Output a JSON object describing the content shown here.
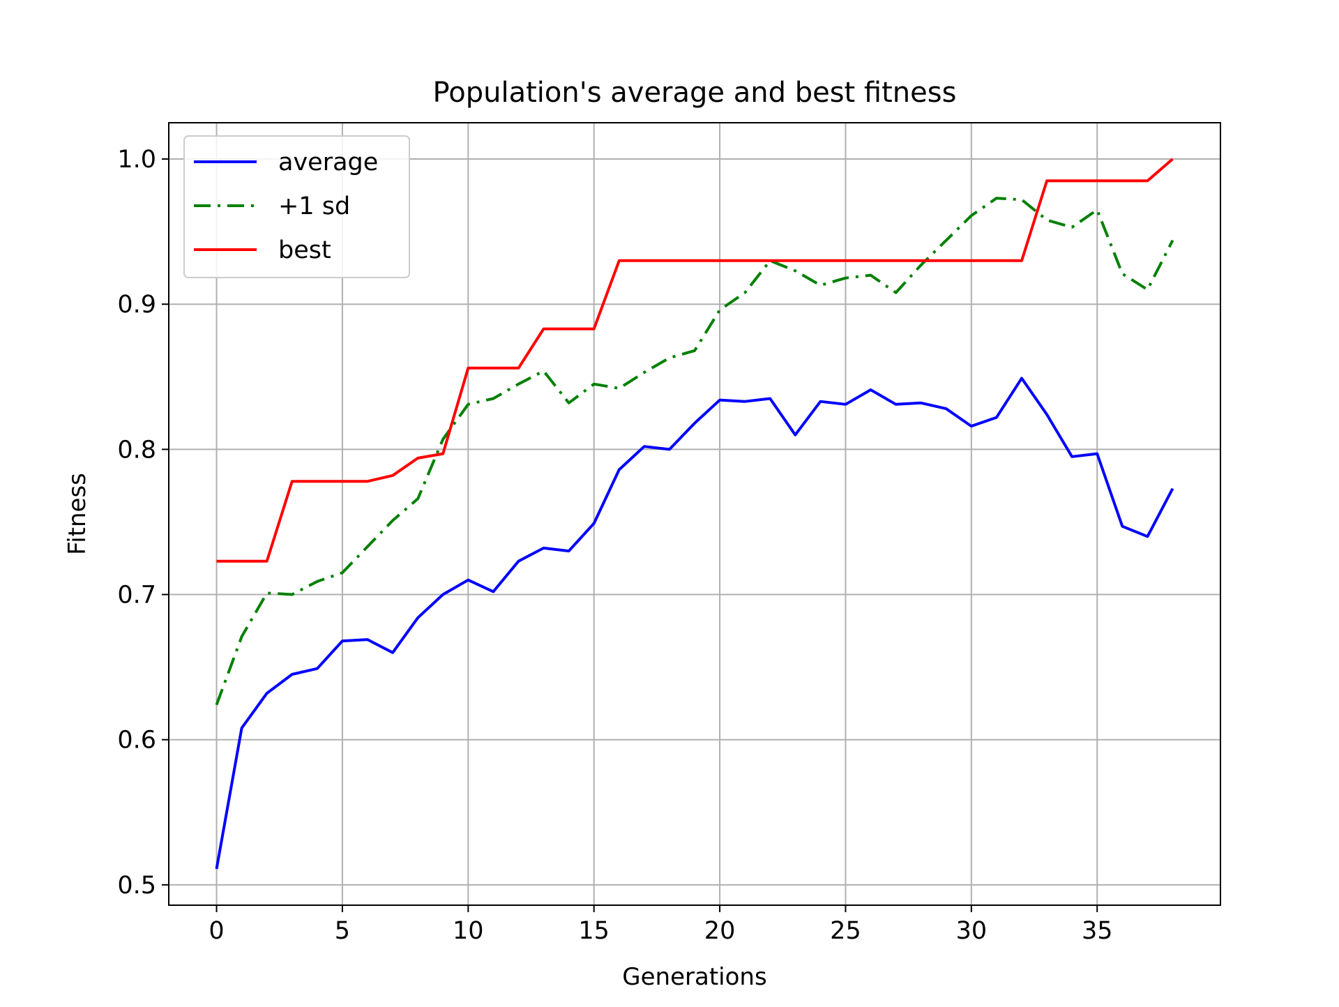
{
  "chart_data": {
    "type": "line",
    "title": "Population's average and best fitness",
    "xlabel": "Generations",
    "ylabel": "Fitness",
    "xlim": [
      -1.9,
      39.9
    ],
    "ylim": [
      0.486,
      1.025
    ],
    "xticks": [
      0,
      5,
      10,
      15,
      20,
      25,
      30,
      35
    ],
    "yticks": [
      0.5,
      0.6,
      0.7,
      0.8,
      0.9,
      1.0
    ],
    "xtick_labels": [
      "0",
      "5",
      "10",
      "15",
      "20",
      "25",
      "30",
      "35"
    ],
    "ytick_labels": [
      "0.5",
      "0.6",
      "0.7",
      "0.8",
      "0.9",
      "1.0"
    ],
    "grid": true,
    "legend_position": "upper-left",
    "x": [
      0,
      1,
      2,
      3,
      4,
      5,
      6,
      7,
      8,
      9,
      10,
      11,
      12,
      13,
      14,
      15,
      16,
      17,
      18,
      19,
      20,
      21,
      22,
      23,
      24,
      25,
      26,
      27,
      28,
      29,
      30,
      31,
      32,
      33,
      34,
      35,
      36,
      37,
      38
    ],
    "series": [
      {
        "name": "average",
        "color": "#0000ff",
        "style": "solid",
        "values": [
          0.511,
          0.608,
          0.632,
          0.645,
          0.649,
          0.668,
          0.669,
          0.66,
          0.684,
          0.7,
          0.71,
          0.702,
          0.723,
          0.732,
          0.73,
          0.749,
          0.786,
          0.802,
          0.8,
          0.818,
          0.834,
          0.833,
          0.835,
          0.81,
          0.833,
          0.831,
          0.841,
          0.831,
          0.832,
          0.828,
          0.816,
          0.822,
          0.849,
          0.824,
          0.795,
          0.797,
          0.747,
          0.74,
          0.773
        ]
      },
      {
        "name": "+1 sd",
        "color": "#008000",
        "style": "dashdot",
        "values": [
          0.624,
          0.671,
          0.701,
          0.7,
          0.709,
          0.715,
          0.733,
          0.751,
          0.766,
          0.807,
          0.831,
          0.835,
          0.845,
          0.854,
          0.832,
          0.845,
          0.842,
          0.853,
          0.863,
          0.868,
          0.896,
          0.908,
          0.93,
          0.923,
          0.913,
          0.918,
          0.92,
          0.908,
          0.927,
          0.944,
          0.961,
          0.973,
          0.972,
          0.958,
          0.953,
          0.965,
          0.921,
          0.91,
          0.944
        ]
      },
      {
        "name": "best",
        "color": "#ff0000",
        "style": "solid",
        "values": [
          0.723,
          0.723,
          0.723,
          0.778,
          0.778,
          0.778,
          0.778,
          0.782,
          0.794,
          0.797,
          0.856,
          0.856,
          0.856,
          0.883,
          0.883,
          0.883,
          0.93,
          0.93,
          0.93,
          0.93,
          0.93,
          0.93,
          0.93,
          0.93,
          0.93,
          0.93,
          0.93,
          0.93,
          0.93,
          0.93,
          0.93,
          0.93,
          0.93,
          0.985,
          0.985,
          0.985,
          0.985,
          0.985,
          1.0
        ]
      }
    ]
  }
}
